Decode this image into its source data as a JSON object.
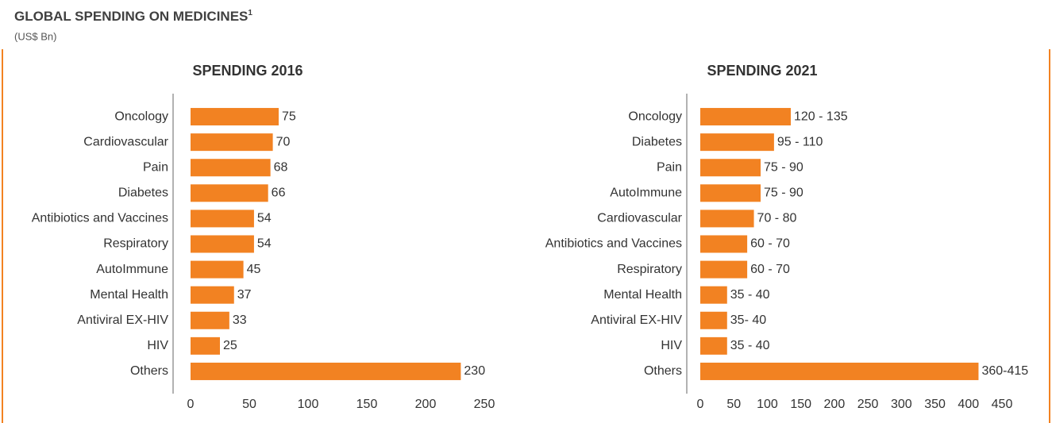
{
  "header": {
    "title": "GLOBAL SPENDING ON MEDICINES",
    "footnote_mark": "1",
    "subtitle": "(US$ Bn)"
  },
  "chart_data": [
    {
      "type": "bar",
      "orientation": "horizontal",
      "title": "SPENDING 2016",
      "color": "#f28222",
      "categories": [
        "Oncology",
        "Cardiovascular",
        "Pain",
        "Diabetes",
        "Antibiotics and Vaccines",
        "Respiratory",
        "AutoImmune",
        "Mental Health",
        "Antiviral EX-HIV",
        "HIV",
        "Others"
      ],
      "values": [
        75,
        70,
        68,
        66,
        54,
        54,
        45,
        37,
        33,
        25,
        230
      ],
      "xlim": [
        0,
        250
      ],
      "xticks": [
        0,
        50,
        100,
        150,
        200,
        250
      ]
    },
    {
      "type": "bar",
      "orientation": "horizontal",
      "title": "SPENDING 2021",
      "color": "#f28222",
      "categories": [
        "Oncology",
        "Diabetes",
        "Pain",
        "AutoImmune",
        "Cardiovascular",
        "Antibiotics and Vaccines",
        "Respiratory",
        "Mental Health",
        "Antiviral EX-HIV",
        "HIV",
        "Others"
      ],
      "values": [
        135,
        110,
        90,
        90,
        80,
        70,
        70,
        40,
        40,
        40,
        415
      ],
      "value_labels": [
        "120  - 135",
        "95  - 110",
        "75 - 90",
        "75 - 90",
        "70 - 80",
        "60  - 70",
        "60 - 70",
        "35 - 40",
        "35- 40",
        "35 - 40",
        "360-415"
      ],
      "xlim": [
        0,
        450
      ],
      "xticks": [
        0,
        50,
        100,
        150,
        200,
        250,
        300,
        350,
        400,
        450
      ]
    }
  ]
}
